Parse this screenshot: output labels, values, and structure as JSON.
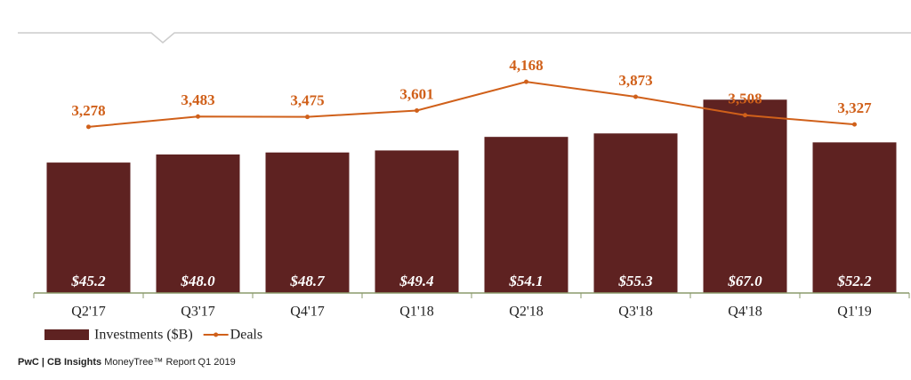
{
  "chart_data": {
    "type": "bar_line",
    "categories": [
      "Q2'17",
      "Q3'17",
      "Q4'17",
      "Q1'18",
      "Q2'18",
      "Q3'18",
      "Q4'18",
      "Q1'19"
    ],
    "series": [
      {
        "name": "Investments ($B)",
        "type": "bar",
        "color": "#5e2221",
        "values": [
          45.2,
          48.0,
          48.7,
          49.4,
          54.1,
          55.3,
          67.0,
          52.2
        ],
        "value_labels": [
          "$45.2",
          "$48.0",
          "$48.7",
          "$49.4",
          "$54.1",
          "$55.3",
          "$67.0",
          "$52.2"
        ]
      },
      {
        "name": "Deals",
        "type": "line",
        "axis": "y2",
        "color": "#d0601a",
        "values": [
          3278,
          3483,
          3475,
          3601,
          4168,
          3873,
          3508,
          3327
        ],
        "value_labels": [
          "3,278",
          "3,483",
          "3,475",
          "3,601",
          "4,168",
          "3,873",
          "3,508",
          "3,327"
        ]
      }
    ],
    "ylim": [
      0,
      72
    ],
    "y2lim": [
      0,
      4100
    ],
    "legend": "bottom-left"
  },
  "footer": {
    "brand": "PwC | CB Insights",
    "text": "MoneyTree™ Report Q1 2019"
  }
}
